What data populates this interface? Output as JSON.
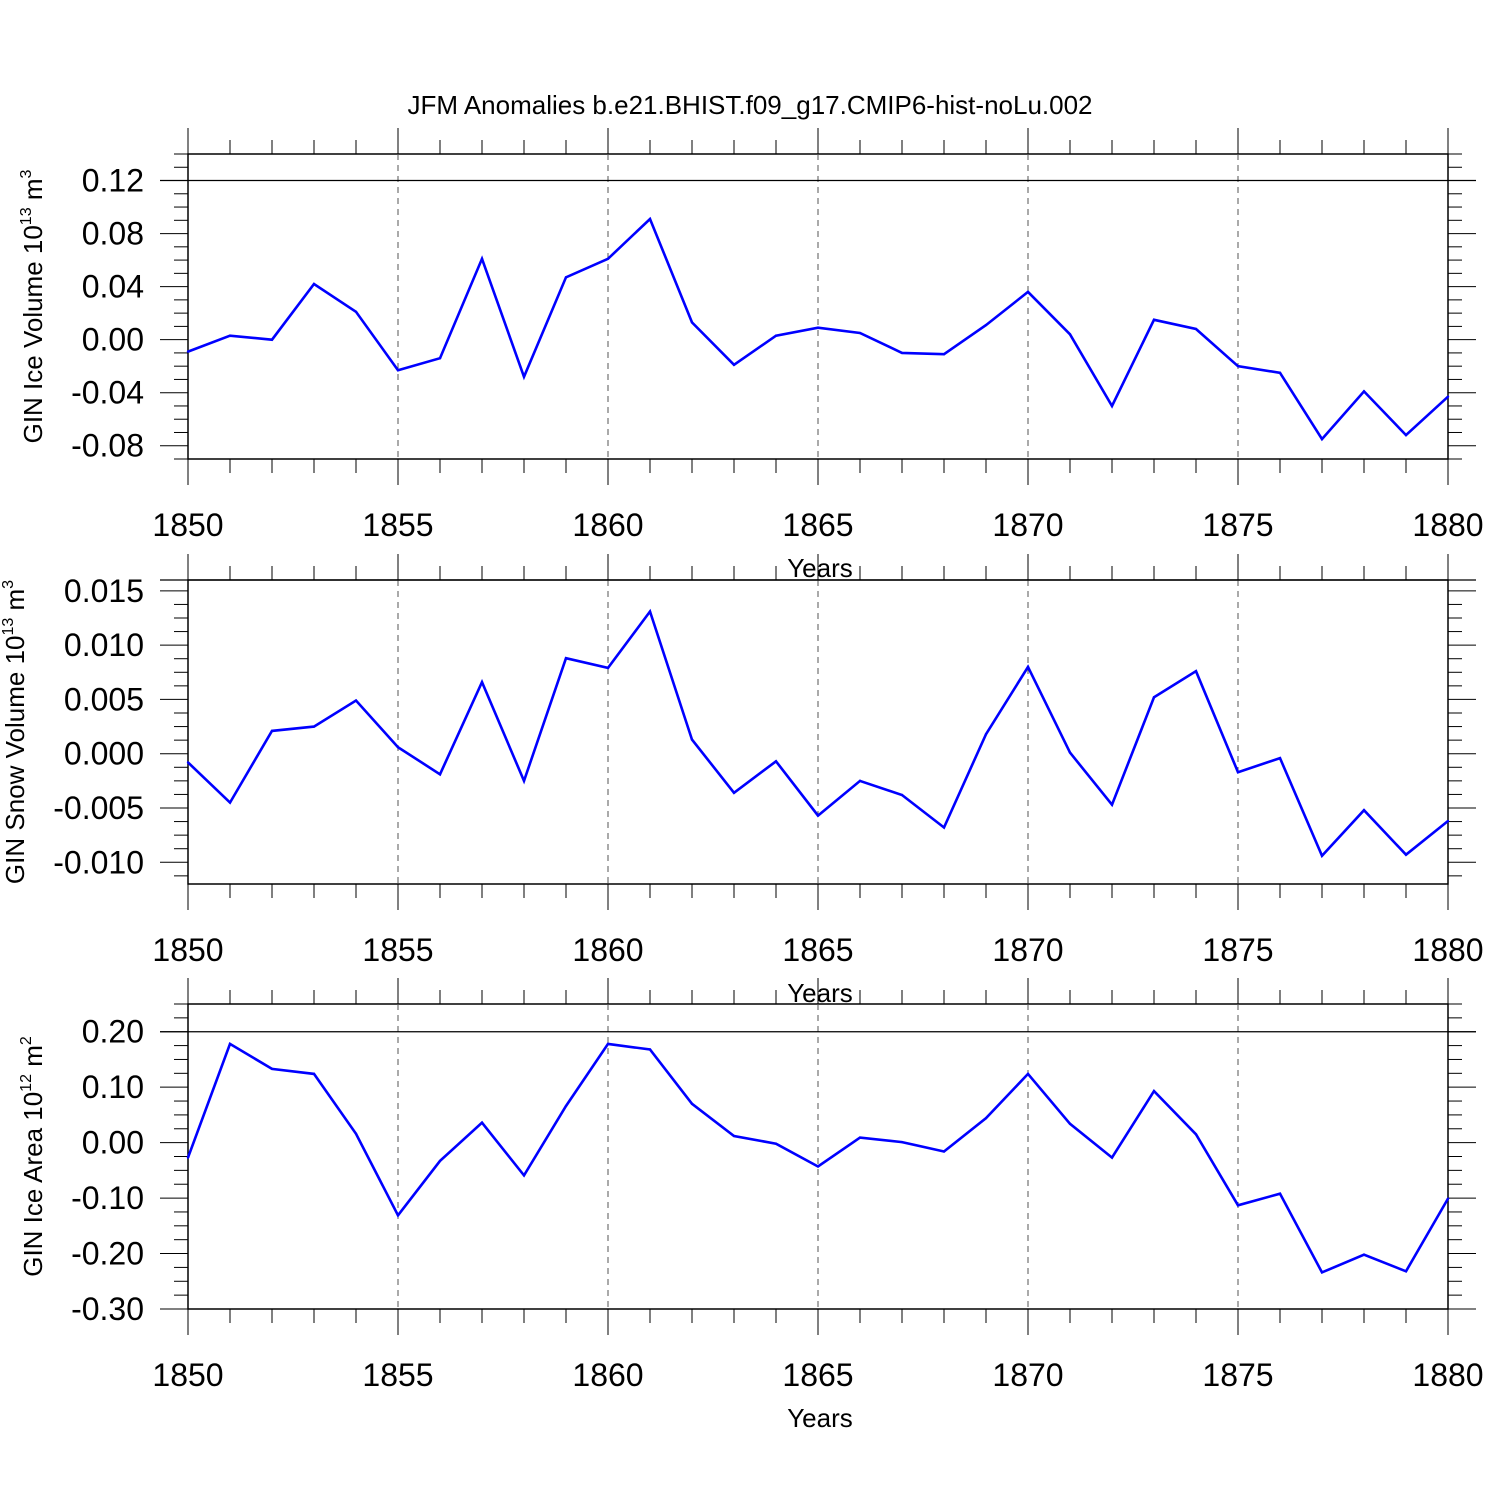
{
  "title": "JFM Anomalies b.e21.BHIST.f09_g17.CMIP6-hist-noLu.002",
  "line_color": "#0000ff",
  "chart_data": [
    {
      "type": "line",
      "ylabel": "GIN Ice Volume 10",
      "ylabel_exp": "13",
      "ylabel_unit": "m",
      "ylabel_unit_exp": "3",
      "xlabel": "Years",
      "xlim": [
        1850,
        1880
      ],
      "ylim": [
        -0.09,
        0.14
      ],
      "xticks": [
        1850,
        1855,
        1860,
        1865,
        1870,
        1875,
        1880
      ],
      "xtick_labels": [
        "1850",
        "1855",
        "1860",
        "1865",
        "1870",
        "1875",
        "1880"
      ],
      "yticks": [
        0.12,
        0.08,
        0.04,
        0.0,
        -0.04,
        -0.08
      ],
      "ytick_labels": [
        "0.12",
        "0.08",
        "0.04",
        "0.00",
        "-0.04",
        "-0.08"
      ],
      "zero_ref": 0.12,
      "x": [
        1850,
        1851,
        1852,
        1853,
        1854,
        1855,
        1856,
        1857,
        1858,
        1859,
        1860,
        1861,
        1862,
        1863,
        1864,
        1865,
        1866,
        1867,
        1868,
        1869,
        1870,
        1871,
        1872,
        1873,
        1874,
        1875,
        1876,
        1877,
        1878,
        1879,
        1880
      ],
      "values": [
        -0.009,
        0.003,
        0.0,
        0.042,
        0.021,
        -0.023,
        -0.014,
        0.061,
        -0.028,
        0.047,
        0.061,
        0.091,
        0.013,
        -0.019,
        0.003,
        0.009,
        0.005,
        -0.01,
        -0.011,
        0.011,
        0.036,
        0.004,
        -0.05,
        0.015,
        0.008,
        -0.02,
        -0.025,
        -0.075,
        -0.039,
        -0.072,
        -0.043
      ]
    },
    {
      "type": "line",
      "ylabel": "GIN Snow Volume 10",
      "ylabel_exp": "13",
      "ylabel_unit": "m",
      "ylabel_unit_exp": "3",
      "xlabel": "Years",
      "xlim": [
        1850,
        1880
      ],
      "ylim": [
        -0.012,
        0.016
      ],
      "xticks": [
        1850,
        1855,
        1860,
        1865,
        1870,
        1875,
        1880
      ],
      "xtick_labels": [
        "1850",
        "1855",
        "1860",
        "1865",
        "1870",
        "1875",
        "1880"
      ],
      "yticks": [
        0.015,
        0.01,
        0.005,
        0.0,
        -0.005,
        -0.01
      ],
      "ytick_labels": [
        "0.015",
        "0.010",
        "0.005",
        "0.000",
        "-0.005",
        "-0.010"
      ],
      "zero_ref": 0.016,
      "x": [
        1850,
        1851,
        1852,
        1853,
        1854,
        1855,
        1856,
        1857,
        1858,
        1859,
        1860,
        1861,
        1862,
        1863,
        1864,
        1865,
        1866,
        1867,
        1868,
        1869,
        1870,
        1871,
        1872,
        1873,
        1874,
        1875,
        1876,
        1877,
        1878,
        1879,
        1880
      ],
      "values": [
        -0.0008,
        -0.0045,
        0.0021,
        0.0025,
        0.0049,
        0.0006,
        -0.0019,
        0.0066,
        -0.0025,
        0.0088,
        0.0079,
        0.0131,
        0.0013,
        -0.0036,
        -0.0007,
        -0.0057,
        -0.0025,
        -0.0038,
        -0.0068,
        0.0018,
        0.008,
        0.0001,
        -0.0047,
        0.0052,
        0.0076,
        -0.0017,
        -0.0004,
        -0.0094,
        -0.0052,
        -0.0093,
        -0.0062
      ]
    },
    {
      "type": "line",
      "ylabel": "GIN Ice Area 10",
      "ylabel_exp": "12",
      "ylabel_unit": "m",
      "ylabel_unit_exp": "2",
      "xlabel": "Years",
      "xlim": [
        1850,
        1880
      ],
      "ylim": [
        -0.3,
        0.25
      ],
      "xticks": [
        1850,
        1855,
        1860,
        1865,
        1870,
        1875,
        1880
      ],
      "xtick_labels": [
        "1850",
        "1855",
        "1860",
        "1865",
        "1870",
        "1875",
        "1880"
      ],
      "yticks": [
        0.2,
        0.1,
        0.0,
        -0.1,
        -0.2,
        -0.3
      ],
      "ytick_labels": [
        "0.20",
        "0.10",
        "0.00",
        "-0.10",
        "-0.20",
        "-0.30"
      ],
      "zero_ref": 0.2,
      "x": [
        1850,
        1851,
        1852,
        1853,
        1854,
        1855,
        1856,
        1857,
        1858,
        1859,
        1860,
        1861,
        1862,
        1863,
        1864,
        1865,
        1866,
        1867,
        1868,
        1869,
        1870,
        1871,
        1872,
        1873,
        1874,
        1875,
        1876,
        1877,
        1878,
        1879,
        1880
      ],
      "values": [
        -0.027,
        0.178,
        0.133,
        0.124,
        0.016,
        -0.131,
        -0.033,
        0.036,
        -0.059,
        0.066,
        0.178,
        0.168,
        0.07,
        0.012,
        -0.002,
        -0.043,
        0.009,
        0.001,
        -0.016,
        0.044,
        0.124,
        0.034,
        -0.027,
        0.093,
        0.015,
        -0.113,
        -0.092,
        -0.234,
        -0.202,
        -0.232,
        -0.101
      ]
    }
  ]
}
